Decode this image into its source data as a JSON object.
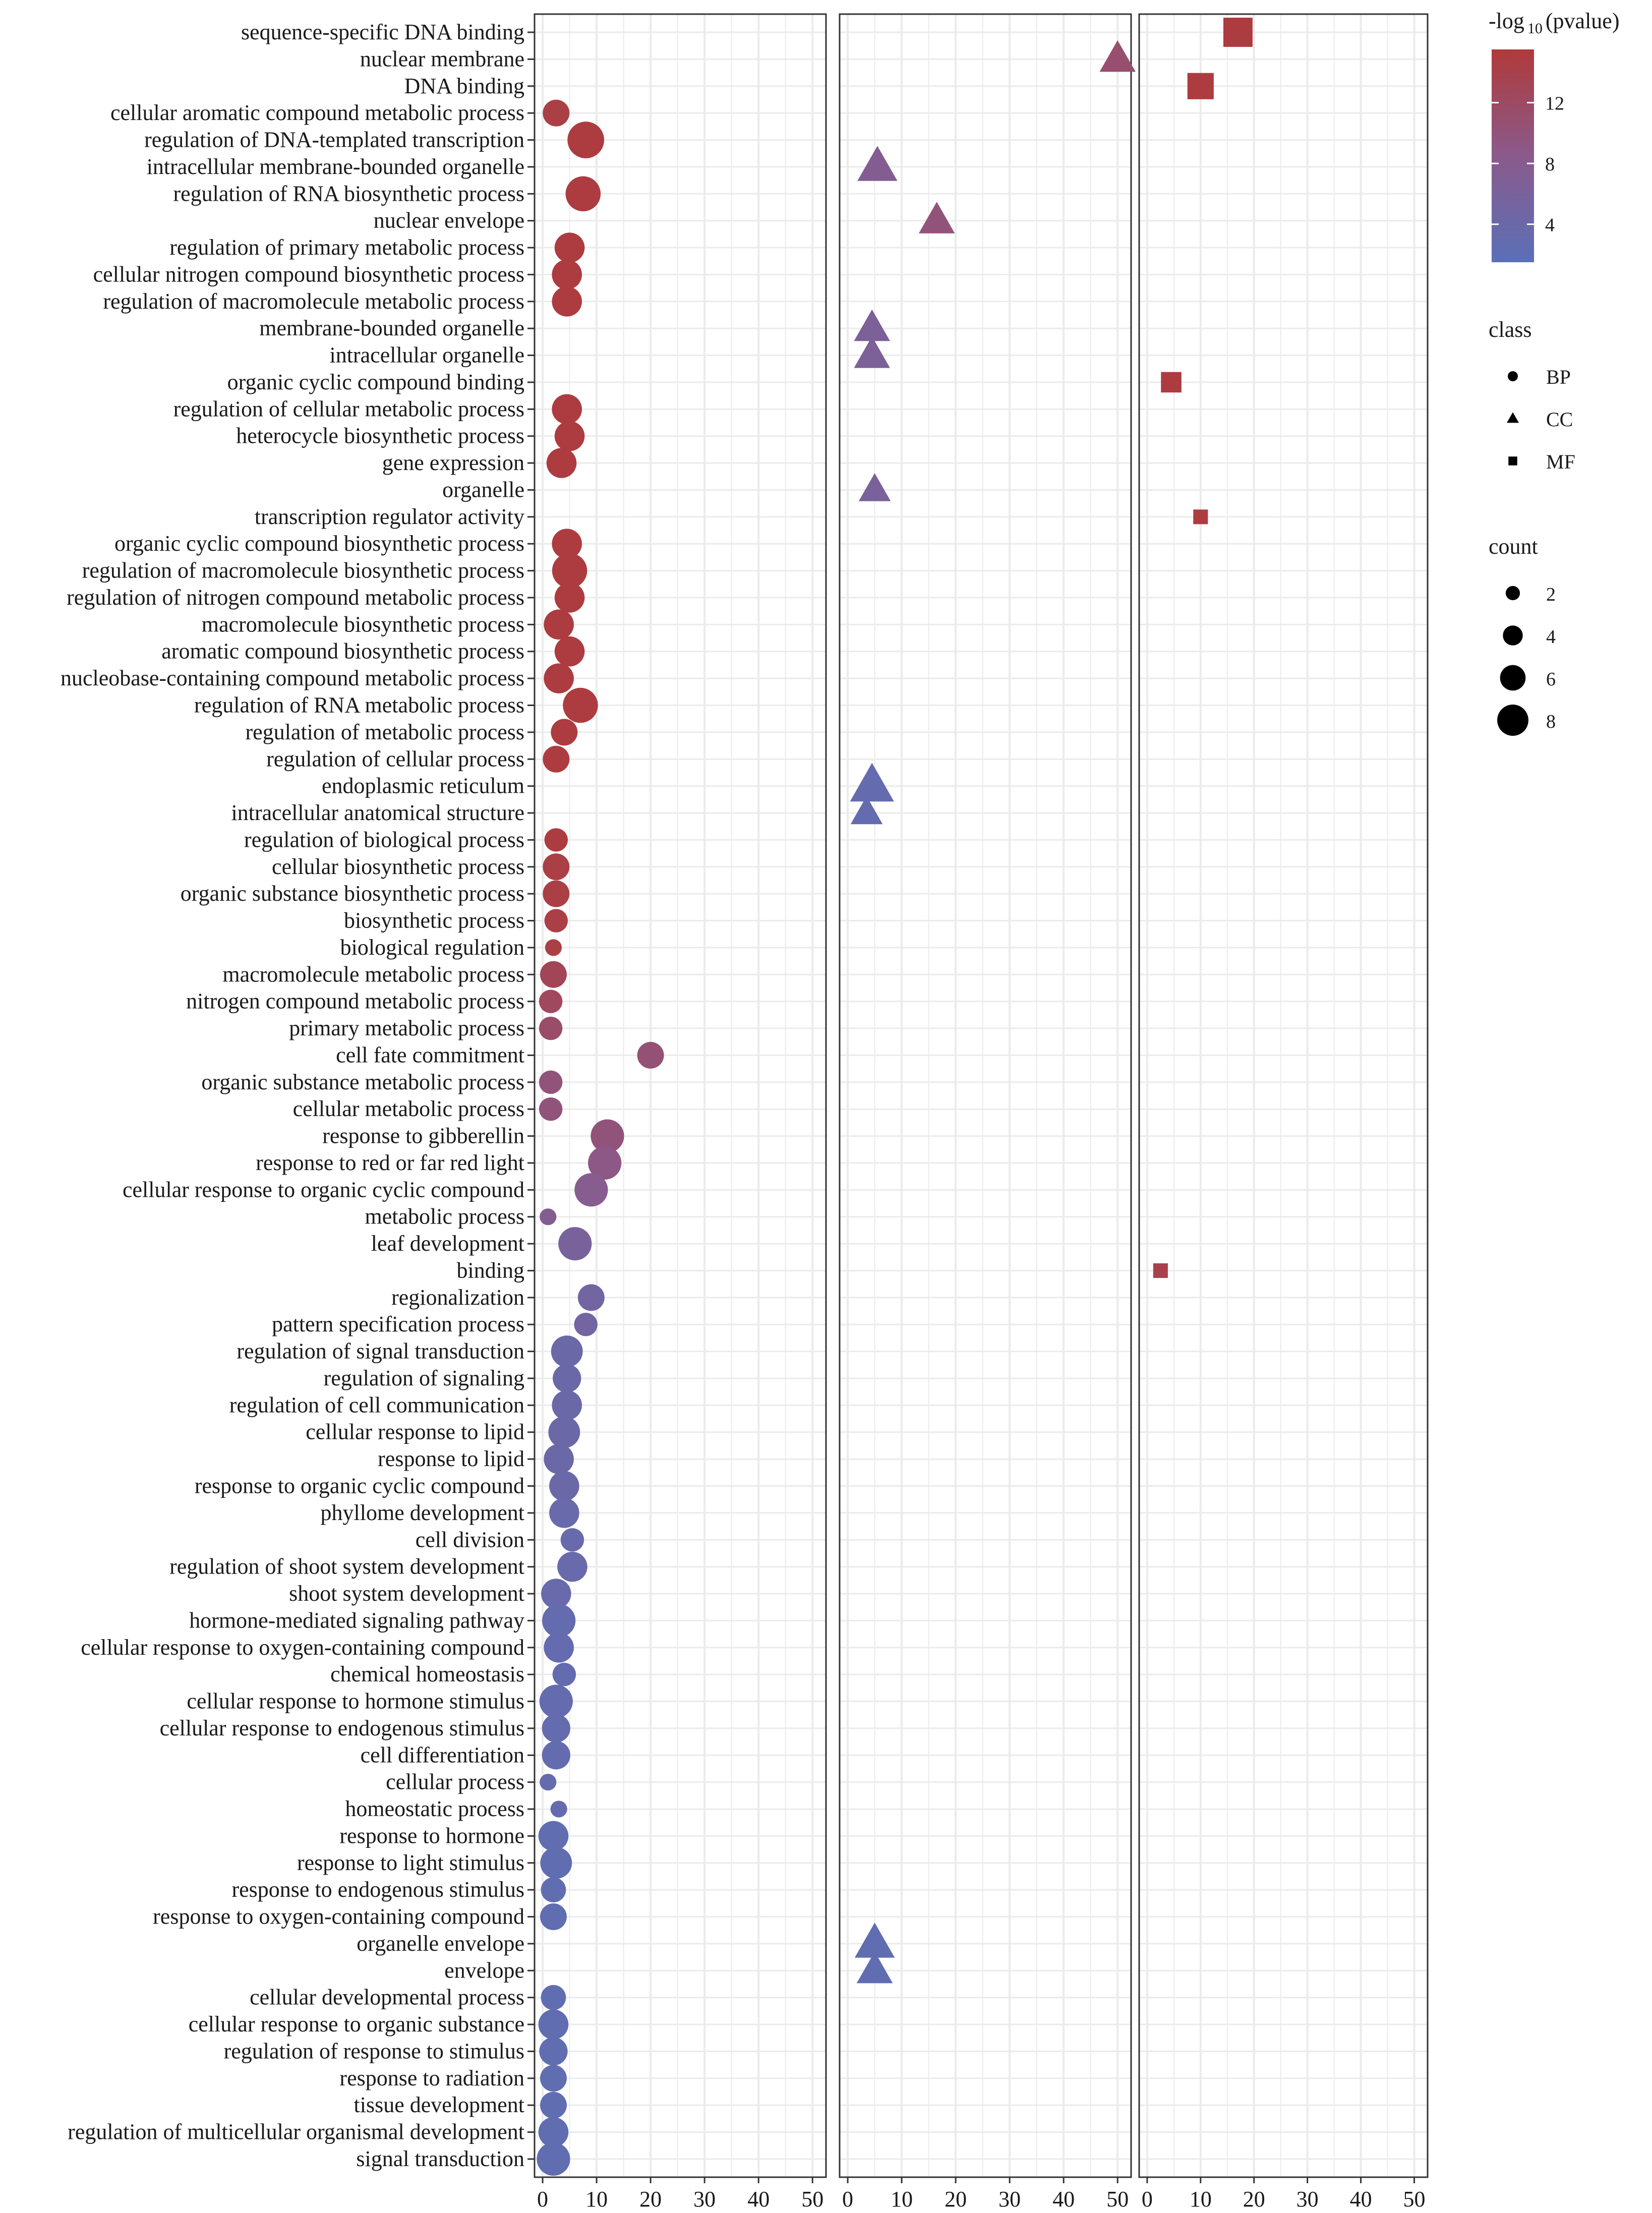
{
  "chart_data": {
    "type": "scatter",
    "facets": [
      "BP",
      "CC",
      "MF"
    ],
    "x_ticks": [
      0,
      10,
      20,
      30,
      40,
      50
    ],
    "xlim": [
      -1.5,
      52.5
    ],
    "terms": [
      "sequence-specific DNA binding",
      "nuclear membrane",
      "DNA binding",
      "cellular aromatic compound metabolic process",
      "regulation of DNA-templated transcription",
      "intracellular membrane-bounded organelle",
      "regulation of RNA biosynthetic process",
      "nuclear envelope",
      "regulation of primary metabolic process",
      "cellular nitrogen compound biosynthetic process",
      "regulation of macromolecule metabolic process",
      "membrane-bounded organelle",
      "intracellular organelle",
      "organic cyclic compound binding",
      "regulation of cellular metabolic process",
      "heterocycle biosynthetic process",
      "gene expression",
      "organelle",
      "transcription regulator activity",
      "organic cyclic compound biosynthetic process",
      "regulation of macromolecule biosynthetic process",
      "regulation of nitrogen compound metabolic process",
      "macromolecule biosynthetic process",
      "aromatic compound biosynthetic process",
      "nucleobase-containing compound metabolic process",
      "regulation of RNA metabolic process",
      "regulation of metabolic process",
      "regulation of cellular process",
      "endoplasmic reticulum",
      "intracellular anatomical structure",
      "regulation of biological process",
      "cellular biosynthetic process",
      "organic substance biosynthetic process",
      "biosynthetic process",
      "biological regulation",
      "macromolecule metabolic process",
      "nitrogen compound metabolic process",
      "primary metabolic process",
      "cell fate commitment",
      "organic substance metabolic process",
      "cellular metabolic process",
      "response to gibberellin",
      "response to red or far red light",
      "cellular response to organic cyclic compound",
      "metabolic process",
      "leaf development",
      "binding",
      "regionalization",
      "pattern specification process",
      "regulation of signal transduction",
      "regulation of signaling",
      "regulation of cell communication",
      "cellular response to lipid",
      "response to lipid",
      "response to organic cyclic compound",
      "phyllome development",
      "cell division",
      "regulation of shoot system development",
      "shoot system development",
      "hormone-mediated signaling pathway",
      "cellular response to oxygen-containing compound",
      "chemical homeostasis",
      "cellular response to hormone stimulus",
      "cellular response to endogenous stimulus",
      "cell differentiation",
      "cellular process",
      "homeostatic process",
      "response to hormone",
      "response to light stimulus",
      "response to endogenous stimulus",
      "response to oxygen-containing compound",
      "organelle envelope",
      "envelope",
      "cellular developmental process",
      "cellular response to organic substance",
      "regulation of response to stimulus",
      "response to radiation",
      "tissue development",
      "regulation of multicellular organismal development",
      "signal transduction"
    ],
    "points": [
      {
        "term": "sequence-specific DNA binding",
        "class": "MF",
        "x": 17,
        "count": 7,
        "neglog10p": 15
      },
      {
        "term": "nuclear membrane",
        "class": "CC",
        "x": 50,
        "count": 6,
        "neglog10p": 11
      },
      {
        "term": "DNA binding",
        "class": "MF",
        "x": 10,
        "count": 6,
        "neglog10p": 15
      },
      {
        "term": "cellular aromatic compound metabolic process",
        "class": "BP",
        "x": 2.5,
        "count": 5,
        "neglog10p": 14.5
      },
      {
        "term": "regulation of DNA-templated transcription",
        "class": "BP",
        "x": 8,
        "count": 8,
        "neglog10p": 15
      },
      {
        "term": "intracellular membrane-bounded organelle",
        "class": "CC",
        "x": 5.5,
        "count": 7,
        "neglog10p": 7.5
      },
      {
        "term": "regulation of RNA biosynthetic process",
        "class": "BP",
        "x": 7.5,
        "count": 7.5,
        "neglog10p": 15
      },
      {
        "term": "nuclear envelope",
        "class": "CC",
        "x": 16.5,
        "count": 6,
        "neglog10p": 10
      },
      {
        "term": "regulation of primary metabolic process",
        "class": "BP",
        "x": 5,
        "count": 6,
        "neglog10p": 15
      },
      {
        "term": "cellular nitrogen compound biosynthetic process",
        "class": "BP",
        "x": 4.5,
        "count": 6,
        "neglog10p": 15
      },
      {
        "term": "regulation of macromolecule metabolic process",
        "class": "BP",
        "x": 4.5,
        "count": 6,
        "neglog10p": 15
      },
      {
        "term": "membrane-bounded organelle",
        "class": "CC",
        "x": 4.5,
        "count": 6,
        "neglog10p": 6.5
      },
      {
        "term": "intracellular organelle",
        "class": "CC",
        "x": 4.5,
        "count": 6,
        "neglog10p": 6.5
      },
      {
        "term": "organic cyclic compound binding",
        "class": "MF",
        "x": 4.5,
        "count": 4,
        "neglog10p": 15
      },
      {
        "term": "regulation of cellular metabolic process",
        "class": "BP",
        "x": 4.5,
        "count": 6,
        "neglog10p": 15
      },
      {
        "term": "heterocycle biosynthetic process",
        "class": "BP",
        "x": 5,
        "count": 6,
        "neglog10p": 15
      },
      {
        "term": "gene expression",
        "class": "BP",
        "x": 3.5,
        "count": 6,
        "neglog10p": 15
      },
      {
        "term": "organelle",
        "class": "CC",
        "x": 5,
        "count": 5,
        "neglog10p": 6
      },
      {
        "term": "transcription regulator activity",
        "class": "MF",
        "x": 10,
        "count": 2,
        "neglog10p": 15
      },
      {
        "term": "organic cyclic compound biosynthetic process",
        "class": "BP",
        "x": 4.5,
        "count": 6,
        "neglog10p": 15
      },
      {
        "term": "regulation of macromolecule biosynthetic process",
        "class": "BP",
        "x": 5,
        "count": 7.5,
        "neglog10p": 15
      },
      {
        "term": "regulation of nitrogen compound metabolic process",
        "class": "BP",
        "x": 5,
        "count": 6,
        "neglog10p": 15
      },
      {
        "term": "macromolecule biosynthetic process",
        "class": "BP",
        "x": 3,
        "count": 6,
        "neglog10p": 15
      },
      {
        "term": "aromatic compound biosynthetic process",
        "class": "BP",
        "x": 5,
        "count": 6,
        "neglog10p": 15
      },
      {
        "term": "nucleobase-containing compound metabolic process",
        "class": "BP",
        "x": 3,
        "count": 6,
        "neglog10p": 15
      },
      {
        "term": "regulation of RNA metabolic process",
        "class": "BP",
        "x": 7,
        "count": 7.5,
        "neglog10p": 15
      },
      {
        "term": "regulation of metabolic process",
        "class": "BP",
        "x": 4,
        "count": 5,
        "neglog10p": 15
      },
      {
        "term": "regulation of cellular process",
        "class": "BP",
        "x": 2.5,
        "count": 5,
        "neglog10p": 15
      },
      {
        "term": "endoplasmic reticulum",
        "class": "CC",
        "x": 4.5,
        "count": 8,
        "neglog10p": 3
      },
      {
        "term": "intracellular anatomical structure",
        "class": "CC",
        "x": 3.5,
        "count": 5,
        "neglog10p": 3
      },
      {
        "term": "regulation of biological process",
        "class": "BP",
        "x": 2.5,
        "count": 4,
        "neglog10p": 15
      },
      {
        "term": "cellular biosynthetic process",
        "class": "BP",
        "x": 2.5,
        "count": 5,
        "neglog10p": 14.5
      },
      {
        "term": "organic substance biosynthetic process",
        "class": "BP",
        "x": 2.5,
        "count": 5,
        "neglog10p": 14.5
      },
      {
        "term": "biosynthetic process",
        "class": "BP",
        "x": 2.5,
        "count": 4,
        "neglog10p": 14.5
      },
      {
        "term": "biological regulation",
        "class": "BP",
        "x": 2,
        "count": 2,
        "neglog10p": 14.5
      },
      {
        "term": "macromolecule metabolic process",
        "class": "BP",
        "x": 2,
        "count": 5,
        "neglog10p": 13
      },
      {
        "term": "nitrogen compound metabolic process",
        "class": "BP",
        "x": 1.5,
        "count": 4,
        "neglog10p": 12.5
      },
      {
        "term": "primary metabolic process",
        "class": "BP",
        "x": 1.5,
        "count": 4,
        "neglog10p": 11.5
      },
      {
        "term": "cell fate commitment",
        "class": "BP",
        "x": 20,
        "count": 5,
        "neglog10p": 10.5
      },
      {
        "term": "organic substance metabolic process",
        "class": "BP",
        "x": 1.5,
        "count": 4,
        "neglog10p": 10
      },
      {
        "term": "cellular metabolic process",
        "class": "BP",
        "x": 1.5,
        "count": 4,
        "neglog10p": 10
      },
      {
        "term": "response to gibberellin",
        "class": "BP",
        "x": 12,
        "count": 7,
        "neglog10p": 10
      },
      {
        "term": "response to red or far red light",
        "class": "BP",
        "x": 11.5,
        "count": 7,
        "neglog10p": 9
      },
      {
        "term": "cellular response to organic cyclic compound",
        "class": "BP",
        "x": 9,
        "count": 7,
        "neglog10p": 8
      },
      {
        "term": "metabolic process",
        "class": "BP",
        "x": 1,
        "count": 2,
        "neglog10p": 7.5
      },
      {
        "term": "leaf development",
        "class": "BP",
        "x": 6,
        "count": 7,
        "neglog10p": 6
      },
      {
        "term": "binding",
        "class": "MF",
        "x": 2.5,
        "count": 2,
        "neglog10p": 14
      },
      {
        "term": "regionalization",
        "class": "BP",
        "x": 9,
        "count": 5,
        "neglog10p": 5
      },
      {
        "term": "pattern specification process",
        "class": "BP",
        "x": 8,
        "count": 4,
        "neglog10p": 5
      },
      {
        "term": "regulation of signal transduction",
        "class": "BP",
        "x": 4.5,
        "count": 6.5,
        "neglog10p": 4
      },
      {
        "term": "regulation of signaling",
        "class": "BP",
        "x": 4.5,
        "count": 5.5,
        "neglog10p": 4
      },
      {
        "term": "regulation of cell communication",
        "class": "BP",
        "x": 4.5,
        "count": 6,
        "neglog10p": 4
      },
      {
        "term": "cellular response to lipid",
        "class": "BP",
        "x": 4,
        "count": 6.5,
        "neglog10p": 4
      },
      {
        "term": "response to lipid",
        "class": "BP",
        "x": 3,
        "count": 6,
        "neglog10p": 4
      },
      {
        "term": "response to organic cyclic compound",
        "class": "BP",
        "x": 4,
        "count": 6,
        "neglog10p": 4
      },
      {
        "term": "phyllome development",
        "class": "BP",
        "x": 4,
        "count": 6,
        "neglog10p": 3.5
      },
      {
        "term": "cell division",
        "class": "BP",
        "x": 5.5,
        "count": 4,
        "neglog10p": 3.5
      },
      {
        "term": "regulation of shoot system development",
        "class": "BP",
        "x": 5.5,
        "count": 6,
        "neglog10p": 3.5
      },
      {
        "term": "shoot system development",
        "class": "BP",
        "x": 2.5,
        "count": 6,
        "neglog10p": 3.5
      },
      {
        "term": "hormone-mediated signaling pathway",
        "class": "BP",
        "x": 3,
        "count": 7,
        "neglog10p": 3
      },
      {
        "term": "cellular response to oxygen-containing compound",
        "class": "BP",
        "x": 3,
        "count": 6,
        "neglog10p": 3
      },
      {
        "term": "chemical homeostasis",
        "class": "BP",
        "x": 4,
        "count": 4,
        "neglog10p": 3
      },
      {
        "term": "cellular response to hormone stimulus",
        "class": "BP",
        "x": 2.5,
        "count": 7,
        "neglog10p": 3
      },
      {
        "term": "cellular response to endogenous stimulus",
        "class": "BP",
        "x": 2.5,
        "count": 5.5,
        "neglog10p": 3
      },
      {
        "term": "cell differentiation",
        "class": "BP",
        "x": 2.5,
        "count": 5.5,
        "neglog10p": 3
      },
      {
        "term": "cellular process",
        "class": "BP",
        "x": 1,
        "count": 2,
        "neglog10p": 3
      },
      {
        "term": "homeostatic process",
        "class": "BP",
        "x": 3,
        "count": 2,
        "neglog10p": 3
      },
      {
        "term": "response to hormone",
        "class": "BP",
        "x": 2,
        "count": 6,
        "neglog10p": 2.5
      },
      {
        "term": "response to light stimulus",
        "class": "BP",
        "x": 2.5,
        "count": 6.5,
        "neglog10p": 2.5
      },
      {
        "term": "response to endogenous stimulus",
        "class": "BP",
        "x": 2,
        "count": 4.5,
        "neglog10p": 2.5
      },
      {
        "term": "response to oxygen-containing compound",
        "class": "BP",
        "x": 2,
        "count": 5,
        "neglog10p": 2.5
      },
      {
        "term": "organelle envelope",
        "class": "CC",
        "x": 5,
        "count": 7,
        "neglog10p": 2.5
      },
      {
        "term": "envelope",
        "class": "CC",
        "x": 5,
        "count": 6,
        "neglog10p": 2.5
      },
      {
        "term": "cellular developmental process",
        "class": "BP",
        "x": 2,
        "count": 4.5,
        "neglog10p": 2.5
      },
      {
        "term": "cellular response to organic substance",
        "class": "BP",
        "x": 2,
        "count": 6,
        "neglog10p": 2.5
      },
      {
        "term": "regulation of response to stimulus",
        "class": "BP",
        "x": 2,
        "count": 5.5,
        "neglog10p": 2.5
      },
      {
        "term": "response to radiation",
        "class": "BP",
        "x": 2,
        "count": 5,
        "neglog10p": 2.5
      },
      {
        "term": "tissue development",
        "class": "BP",
        "x": 2,
        "count": 5,
        "neglog10p": 2.5
      },
      {
        "term": "regulation of multicellular organismal development",
        "class": "BP",
        "x": 2,
        "count": 6,
        "neglog10p": 2.5
      },
      {
        "term": "signal transduction",
        "class": "BP",
        "x": 2,
        "count": 7,
        "neglog10p": 2.5
      }
    ],
    "color_legend": {
      "title_prefix": "-log",
      "title_sub": "10",
      "title_suffix": "(pvalue)",
      "ticks": [
        4,
        8,
        12
      ],
      "range": [
        1.5,
        15.5
      ],
      "low_color": "#5a70b7",
      "mid_color": "#8a5a8c",
      "high_color": "#b03a3a"
    },
    "class_legend": {
      "title": "class",
      "items": [
        "BP",
        "CC",
        "MF"
      ]
    },
    "count_legend": {
      "title": "count",
      "items": [
        2,
        4,
        6,
        8
      ]
    }
  }
}
